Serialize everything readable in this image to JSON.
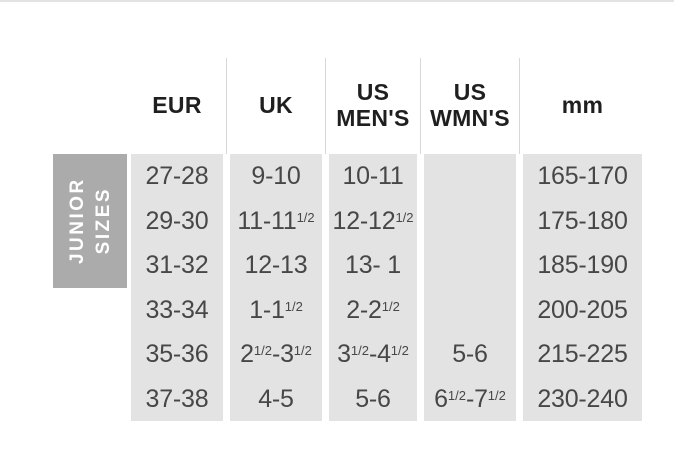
{
  "colors": {
    "cell_bg": "#e3e3e3",
    "group_label_bg": "#ababab",
    "header_divider": "#d8d8d8",
    "top_rule": "#e3e3e3",
    "data_text": "#474747",
    "header_text": "#1f1f1f",
    "group_label_text": "#ffffff"
  },
  "group_label": {
    "full": "JUNIOR SIZES",
    "line1": "JUNIOR",
    "line2": "SIZES"
  },
  "chart_data": {
    "type": "table",
    "title": "JUNIOR SIZES",
    "columns": [
      "EUR",
      "UK",
      "US MEN'S",
      "US WMN'S",
      "mm"
    ],
    "column_keys": [
      "eur",
      "uk",
      "us-mens",
      "us-wmns",
      "mm"
    ],
    "rows": [
      [
        "27-28",
        "9-10",
        "10-11",
        "",
        "165-170"
      ],
      [
        "29-30",
        "11-11½",
        "12-12½",
        "",
        "175-180"
      ],
      [
        "31-32",
        "12-13",
        "13- 1",
        "",
        "185-190"
      ],
      [
        "33-34",
        "1-1½",
        "2-2½",
        "",
        "200-205"
      ],
      [
        "35-36",
        "2½-3½",
        "3½-4½",
        "5-6",
        "215-225"
      ],
      [
        "37-38",
        "4-5",
        "5-6",
        "6½-7½",
        "230-240"
      ]
    ]
  }
}
